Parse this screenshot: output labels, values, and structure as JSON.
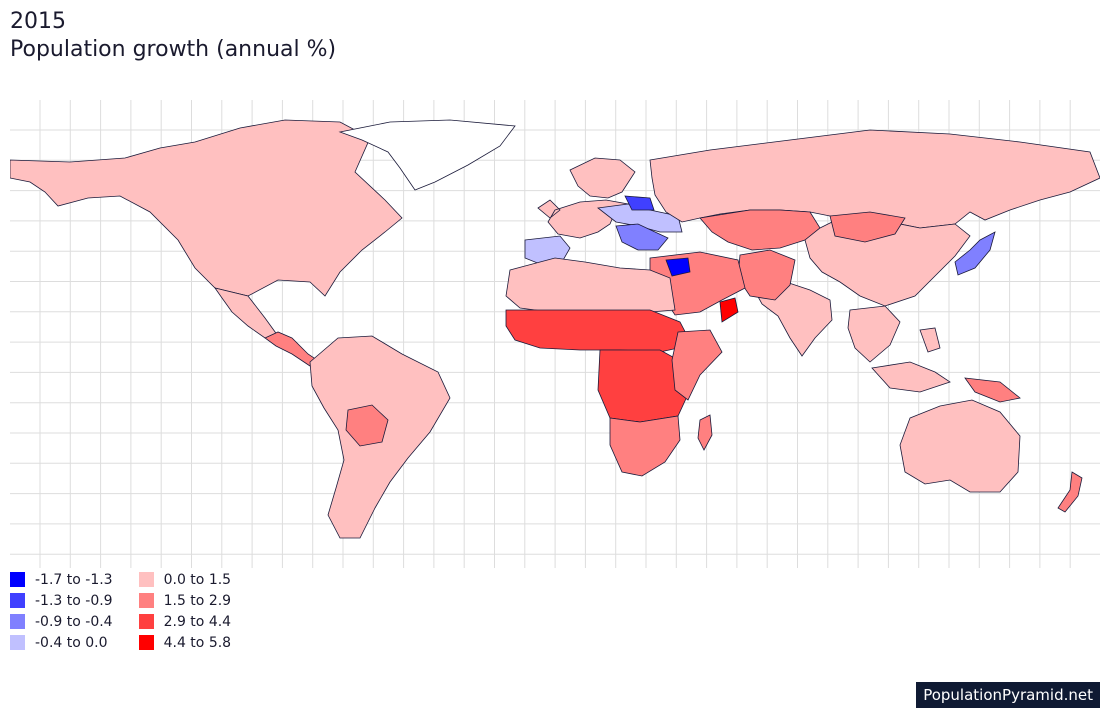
{
  "header": {
    "year": "2015",
    "title": "Population growth (annual %)"
  },
  "legend": {
    "items": [
      {
        "label": "-1.7 to -1.3",
        "color": "#0000ff"
      },
      {
        "label": "-1.3 to -0.9",
        "color": "#4040ff"
      },
      {
        "label": "-0.9 to -0.4",
        "color": "#8080ff"
      },
      {
        "label": "-0.4 to 0.0",
        "color": "#c0c0ff"
      },
      {
        "label": "0.0 to 1.5",
        "color": "#ffc0c0"
      },
      {
        "label": "1.5 to 2.9",
        "color": "#ff8080"
      },
      {
        "label": "2.9 to 4.4",
        "color": "#ff4040"
      },
      {
        "label": "4.4 to 5.8",
        "color": "#ff0000"
      }
    ]
  },
  "footer": {
    "brand": "PopulationPyramid.net"
  },
  "map": {
    "regions": [
      {
        "name": "North America",
        "bin": 4
      },
      {
        "name": "Greenland",
        "bin": null
      },
      {
        "name": "Mexico",
        "bin": 4
      },
      {
        "name": "Central America",
        "bin": 5
      },
      {
        "name": "South America",
        "bin": 4
      },
      {
        "name": "Bolivia",
        "bin": 5
      },
      {
        "name": "Western Europe",
        "bin": 4
      },
      {
        "name": "Iberia",
        "bin": 3
      },
      {
        "name": "Eastern Europe",
        "bin": 3
      },
      {
        "name": "Balkans",
        "bin": 2
      },
      {
        "name": "Baltics",
        "bin": 1
      },
      {
        "name": "Russia",
        "bin": 4
      },
      {
        "name": "Central Asia",
        "bin": 5
      },
      {
        "name": "China",
        "bin": 4
      },
      {
        "name": "Mongolia",
        "bin": 5
      },
      {
        "name": "Japan",
        "bin": 2
      },
      {
        "name": "South Asia",
        "bin": 4
      },
      {
        "name": "Afghanistan & Pakistan",
        "bin": 5
      },
      {
        "name": "Middle East",
        "bin": 5
      },
      {
        "name": "Syria",
        "bin": 0
      },
      {
        "name": "Oman",
        "bin": 7
      },
      {
        "name": "North Africa",
        "bin": 4
      },
      {
        "name": "Sahel",
        "bin": 6
      },
      {
        "name": "Central Africa",
        "bin": 6
      },
      {
        "name": "East Africa",
        "bin": 5
      },
      {
        "name": "Southern Africa",
        "bin": 5
      },
      {
        "name": "Madagascar",
        "bin": 5
      },
      {
        "name": "Southeast Asia",
        "bin": 4
      },
      {
        "name": "Papua New Guinea",
        "bin": 5
      },
      {
        "name": "Australia",
        "bin": 4
      },
      {
        "name": "New Zealand",
        "bin": 5
      }
    ]
  }
}
